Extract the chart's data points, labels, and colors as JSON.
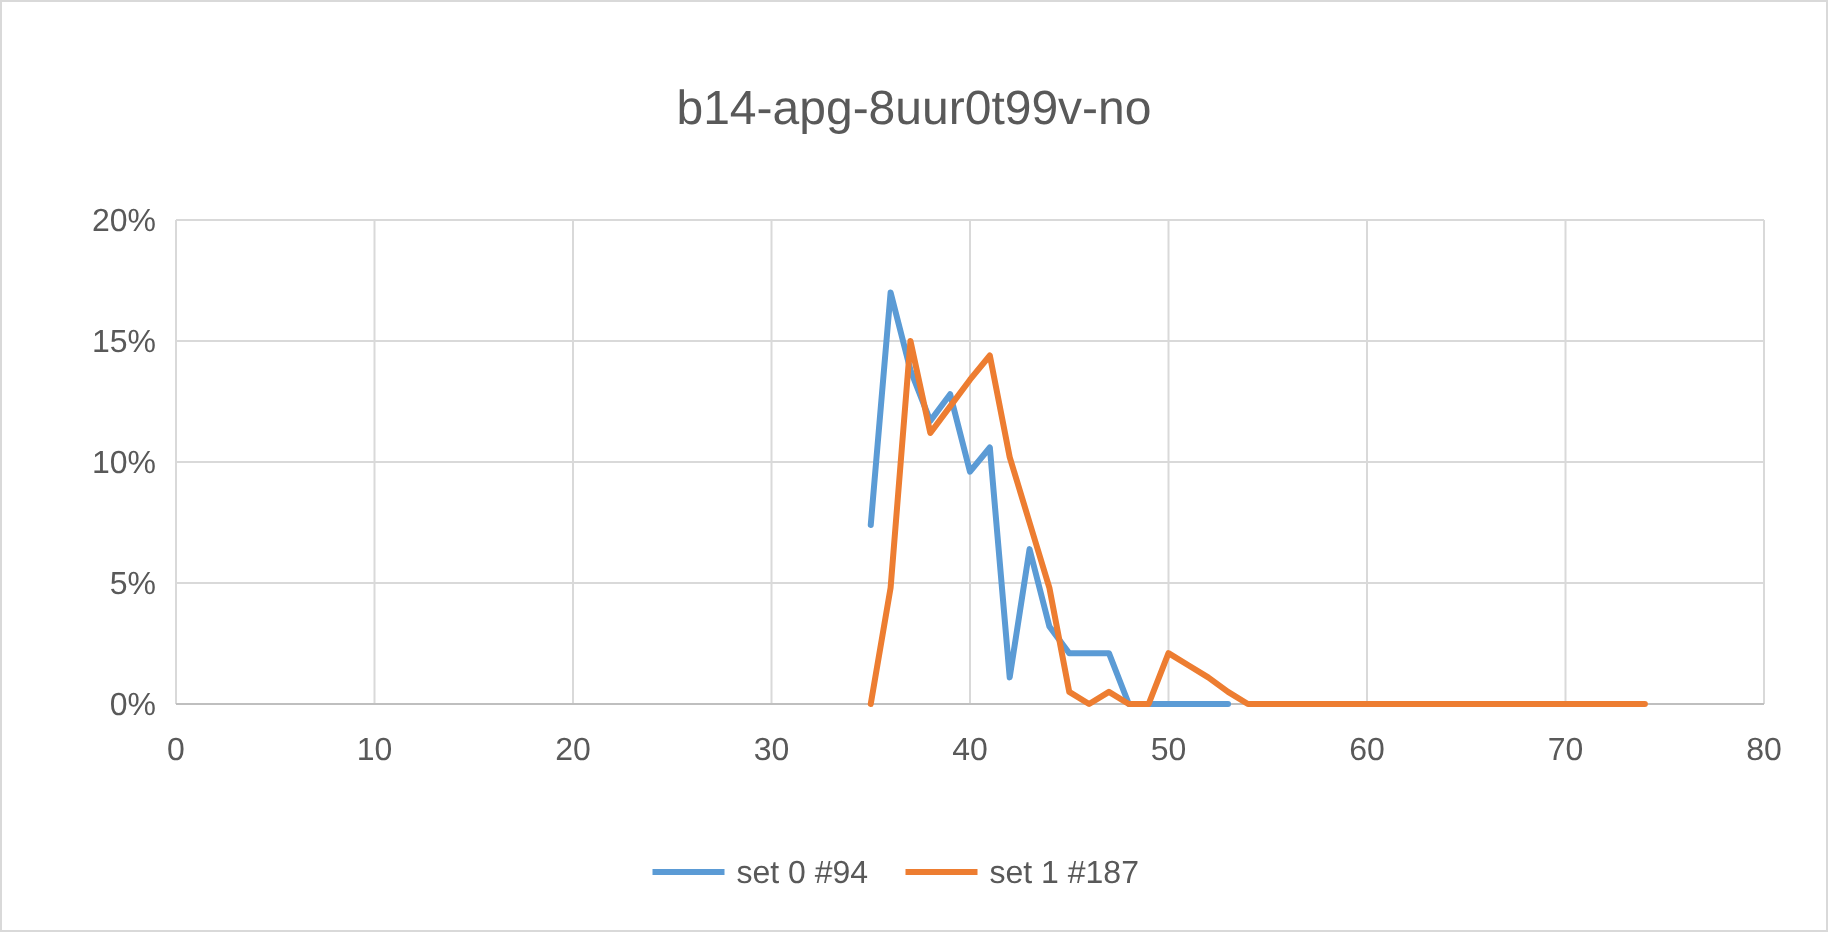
{
  "chart_data": {
    "type": "line",
    "title": "b14-apg-8uur0t99v-no",
    "xlim": [
      0,
      80
    ],
    "xticks": [
      0,
      10,
      20,
      30,
      40,
      50,
      60,
      70,
      80
    ],
    "ylim": [
      0,
      20
    ],
    "yticks": [
      {
        "value": 0,
        "label": "0%"
      },
      {
        "value": 5,
        "label": "5%"
      },
      {
        "value": 10,
        "label": "10%"
      },
      {
        "value": 15,
        "label": "15%"
      },
      {
        "value": 20,
        "label": "20%"
      }
    ],
    "grid": true,
    "legend": "bottom",
    "marker": "none",
    "line_style": "solid",
    "series": [
      {
        "name": "set 0 #94",
        "color": "#5b9bd5",
        "x": [
          35,
          36,
          37,
          38,
          39,
          40,
          41,
          42,
          43,
          44,
          45,
          46,
          47,
          48,
          49,
          50,
          51,
          52,
          53
        ],
        "values": [
          7.4,
          17.0,
          13.8,
          11.7,
          12.8,
          9.6,
          10.6,
          1.1,
          6.4,
          3.2,
          2.1,
          2.1,
          2.1,
          0,
          0,
          0,
          0,
          0,
          0
        ]
      },
      {
        "name": "set 1 #187",
        "color": "#ed7d31",
        "x": [
          35,
          36,
          37,
          38,
          39,
          40,
          41,
          42,
          43,
          44,
          45,
          46,
          47,
          48,
          49,
          50,
          51,
          52,
          53,
          54,
          55,
          56,
          57,
          58,
          59,
          60,
          61,
          62,
          63,
          64,
          65,
          66,
          67,
          68,
          69,
          70,
          71,
          72,
          73,
          74
        ],
        "values": [
          0,
          4.8,
          15.0,
          11.2,
          12.3,
          13.4,
          14.4,
          10.2,
          7.5,
          4.8,
          0.5,
          0,
          0.5,
          0,
          0,
          2.1,
          1.6,
          1.1,
          0.5,
          0,
          0,
          0,
          0,
          0,
          0,
          0,
          0,
          0,
          0,
          0,
          0,
          0,
          0,
          0,
          0,
          0,
          0,
          0,
          0,
          0
        ]
      }
    ]
  }
}
